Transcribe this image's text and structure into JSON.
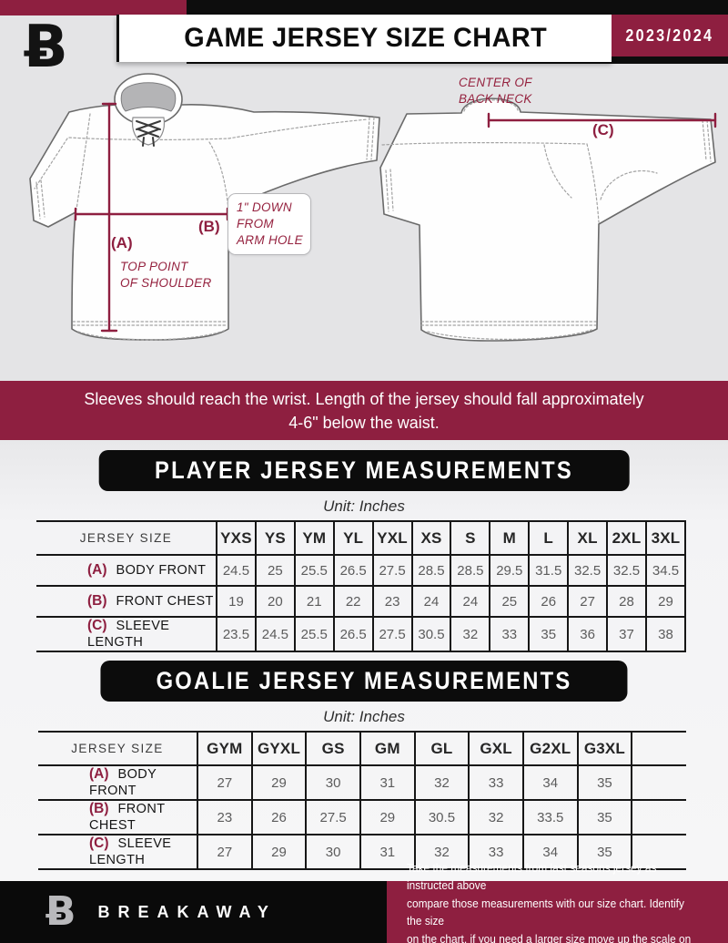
{
  "brand": {
    "glyph": "Ƀ",
    "name": "BREAKAWAY"
  },
  "header": {
    "title": "GAME JERSEY SIZE CHART",
    "season": "2023/2024"
  },
  "diagram": {
    "front": {
      "a_key": "(A)",
      "a_note": "TOP POINT\nOF SHOULDER",
      "b_key": "(B)",
      "b_note": "1\" DOWN\nFROM\nARM HOLE"
    },
    "back": {
      "c_key": "(C)",
      "c_note": "CENTER OF\nBACK NECK"
    }
  },
  "notice": "Sleeves should reach the wrist. Length of the jersey should fall approximately 4-6\" below the waist.",
  "player_table": {
    "title": "PLAYER JERSEY MEASUREMENTS",
    "unit": "Unit: Inches",
    "corner_label": "JERSEY SIZE",
    "sizes": [
      "YXS",
      "YS",
      "YM",
      "YL",
      "YXL",
      "XS",
      "S",
      "M",
      "L",
      "XL",
      "2XL",
      "3XL"
    ],
    "rows": [
      {
        "key": "(A)",
        "label": "BODY FRONT",
        "values": [
          "24.5",
          "25",
          "25.5",
          "26.5",
          "27.5",
          "28.5",
          "28.5",
          "29.5",
          "31.5",
          "32.5",
          "32.5",
          "34.5"
        ]
      },
      {
        "key": "(B)",
        "label": "FRONT CHEST",
        "values": [
          "19",
          "20",
          "21",
          "22",
          "23",
          "24",
          "24",
          "25",
          "26",
          "27",
          "28",
          "29"
        ]
      },
      {
        "key": "(C)",
        "label": "SLEEVE LENGTH",
        "values": [
          "23.5",
          "24.5",
          "25.5",
          "26.5",
          "27.5",
          "30.5",
          "32",
          "33",
          "35",
          "36",
          "37",
          "38"
        ]
      }
    ],
    "trailing_empty_col": false
  },
  "goalie_table": {
    "title": "GOALIE JERSEY MEASUREMENTS",
    "unit": "Unit: Inches",
    "corner_label": "JERSEY SIZE",
    "sizes": [
      "GYM",
      "GYXL",
      "GS",
      "GM",
      "GL",
      "GXL",
      "G2XL",
      "G3XL"
    ],
    "rows": [
      {
        "key": "(A)",
        "label": "BODY FRONT",
        "values": [
          "27",
          "29",
          "30",
          "31",
          "32",
          "33",
          "34",
          "35"
        ]
      },
      {
        "key": "(B)",
        "label": "FRONT CHEST",
        "values": [
          "23",
          "26",
          "27.5",
          "29",
          "30.5",
          "32",
          "33.5",
          "35"
        ]
      },
      {
        "key": "(C)",
        "label": "SLEEVE LENGTH",
        "values": [
          "27",
          "29",
          "30",
          "31",
          "32",
          "33",
          "34",
          "35"
        ]
      }
    ],
    "trailing_empty_col": true
  },
  "footer": {
    "note": "Take the measurements from last seasons jersey as instructed above\ncompare those measurements  with our size chart. Identify the size\non the chart, if you need a larger size move up the scale on the chart"
  }
}
